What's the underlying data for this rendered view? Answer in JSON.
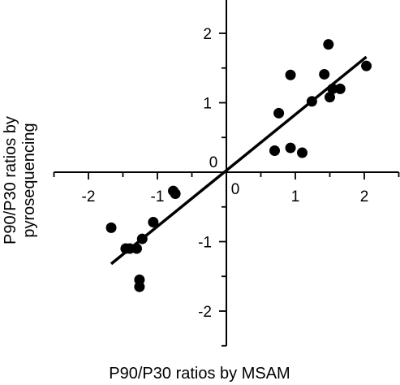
{
  "chart_data": {
    "type": "scatter",
    "title": "",
    "xlabel": "P90/P30 ratios by MSAM",
    "ylabel_lines": [
      "P90/P30 ratios by",
      "pyrosequencing"
    ],
    "xlim": [
      -2.5,
      2.5
    ],
    "ylim": [
      -2.5,
      2.5
    ],
    "xticks": [
      -2,
      -1,
      0,
      1,
      2
    ],
    "yticks": [
      -2,
      -1,
      0,
      1,
      2
    ],
    "xtick_labels": [
      "-2",
      "-1",
      "0",
      "1",
      "2"
    ],
    "ytick_labels": [
      "-2",
      "-1",
      "0",
      "1",
      "2"
    ],
    "origin_label": "0",
    "grid": false,
    "legend": "none",
    "marker_color": "#000000",
    "points": [
      {
        "x": -1.67,
        "y": -0.8
      },
      {
        "x": -1.46,
        "y": -1.1
      },
      {
        "x": -1.4,
        "y": -1.1
      },
      {
        "x": -1.3,
        "y": -1.1
      },
      {
        "x": -1.22,
        "y": -0.96
      },
      {
        "x": -1.06,
        "y": -0.72
      },
      {
        "x": -1.26,
        "y": -1.55
      },
      {
        "x": -1.26,
        "y": -1.65
      },
      {
        "x": -0.77,
        "y": -0.27
      },
      {
        "x": -0.74,
        "y": -0.31
      },
      {
        "x": 0.7,
        "y": 0.31
      },
      {
        "x": 0.76,
        "y": 0.85
      },
      {
        "x": 0.93,
        "y": 1.4
      },
      {
        "x": 0.93,
        "y": 0.35
      },
      {
        "x": 1.1,
        "y": 0.28
      },
      {
        "x": 1.24,
        "y": 1.02
      },
      {
        "x": 1.42,
        "y": 1.41
      },
      {
        "x": 1.48,
        "y": 1.84
      },
      {
        "x": 1.5,
        "y": 1.08
      },
      {
        "x": 1.54,
        "y": 1.2
      },
      {
        "x": 1.65,
        "y": 1.2
      },
      {
        "x": 2.03,
        "y": 1.53
      }
    ],
    "fit_line": {
      "x": [
        -1.67,
        2.03
      ],
      "y": [
        -1.32,
        1.66
      ]
    }
  }
}
